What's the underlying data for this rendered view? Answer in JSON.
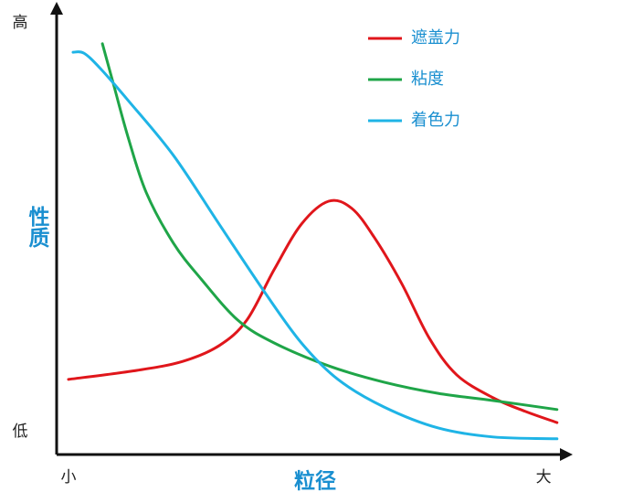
{
  "chart_data": {
    "type": "line",
    "xlabel": "粒径",
    "ylabel": "性质",
    "xlim": [
      0,
      100
    ],
    "ylim": [
      0,
      100
    ],
    "xticks": [
      {
        "value": 2.3,
        "label": "小"
      },
      {
        "value": 94.7,
        "label": "大"
      }
    ],
    "yticks": [
      {
        "value": 5.1,
        "label": "低"
      },
      {
        "value": 95.9,
        "label": "高"
      }
    ],
    "legend": "upper right",
    "series": [
      {
        "name": "遮盖力",
        "color": "#e0161b",
        "x": [
          2.3,
          15.6,
          24.5,
          31.6,
          37.0,
          42.3,
          47.6,
          52.9,
          57.4,
          61.8,
          67.1,
          72.5,
          77.8,
          84.9,
          91.1,
          97.3
        ],
        "values": [
          16.7,
          18.7,
          20.7,
          24.2,
          29.9,
          41.1,
          51.2,
          56.3,
          54.7,
          48.2,
          38.0,
          25.8,
          17.7,
          12.6,
          9.6,
          7.1
        ]
      },
      {
        "name": "粘度",
        "color": "#1fa548",
        "x": [
          8.9,
          11.2,
          13.9,
          17.4,
          22.7,
          28.1,
          35.2,
          42.3,
          52.9,
          63.6,
          74.2,
          84.9,
          97.3
        ],
        "values": [
          91.3,
          81.7,
          70.5,
          58.3,
          47.0,
          39.0,
          29.9,
          24.8,
          19.7,
          16.1,
          13.6,
          12.0,
          10.0
        ]
      },
      {
        "name": "着色力",
        "color": "#1fb4e6",
        "x": [
          3.2,
          5.3,
          8.5,
          13.9,
          22.7,
          31.6,
          40.5,
          47.6,
          54.7,
          63.6,
          74.2,
          84.9,
          97.3
        ],
        "values": [
          89.4,
          89.2,
          85.8,
          78.7,
          66.5,
          51.2,
          36.0,
          24.8,
          16.7,
          10.6,
          5.9,
          3.9,
          3.5
        ]
      }
    ]
  }
}
